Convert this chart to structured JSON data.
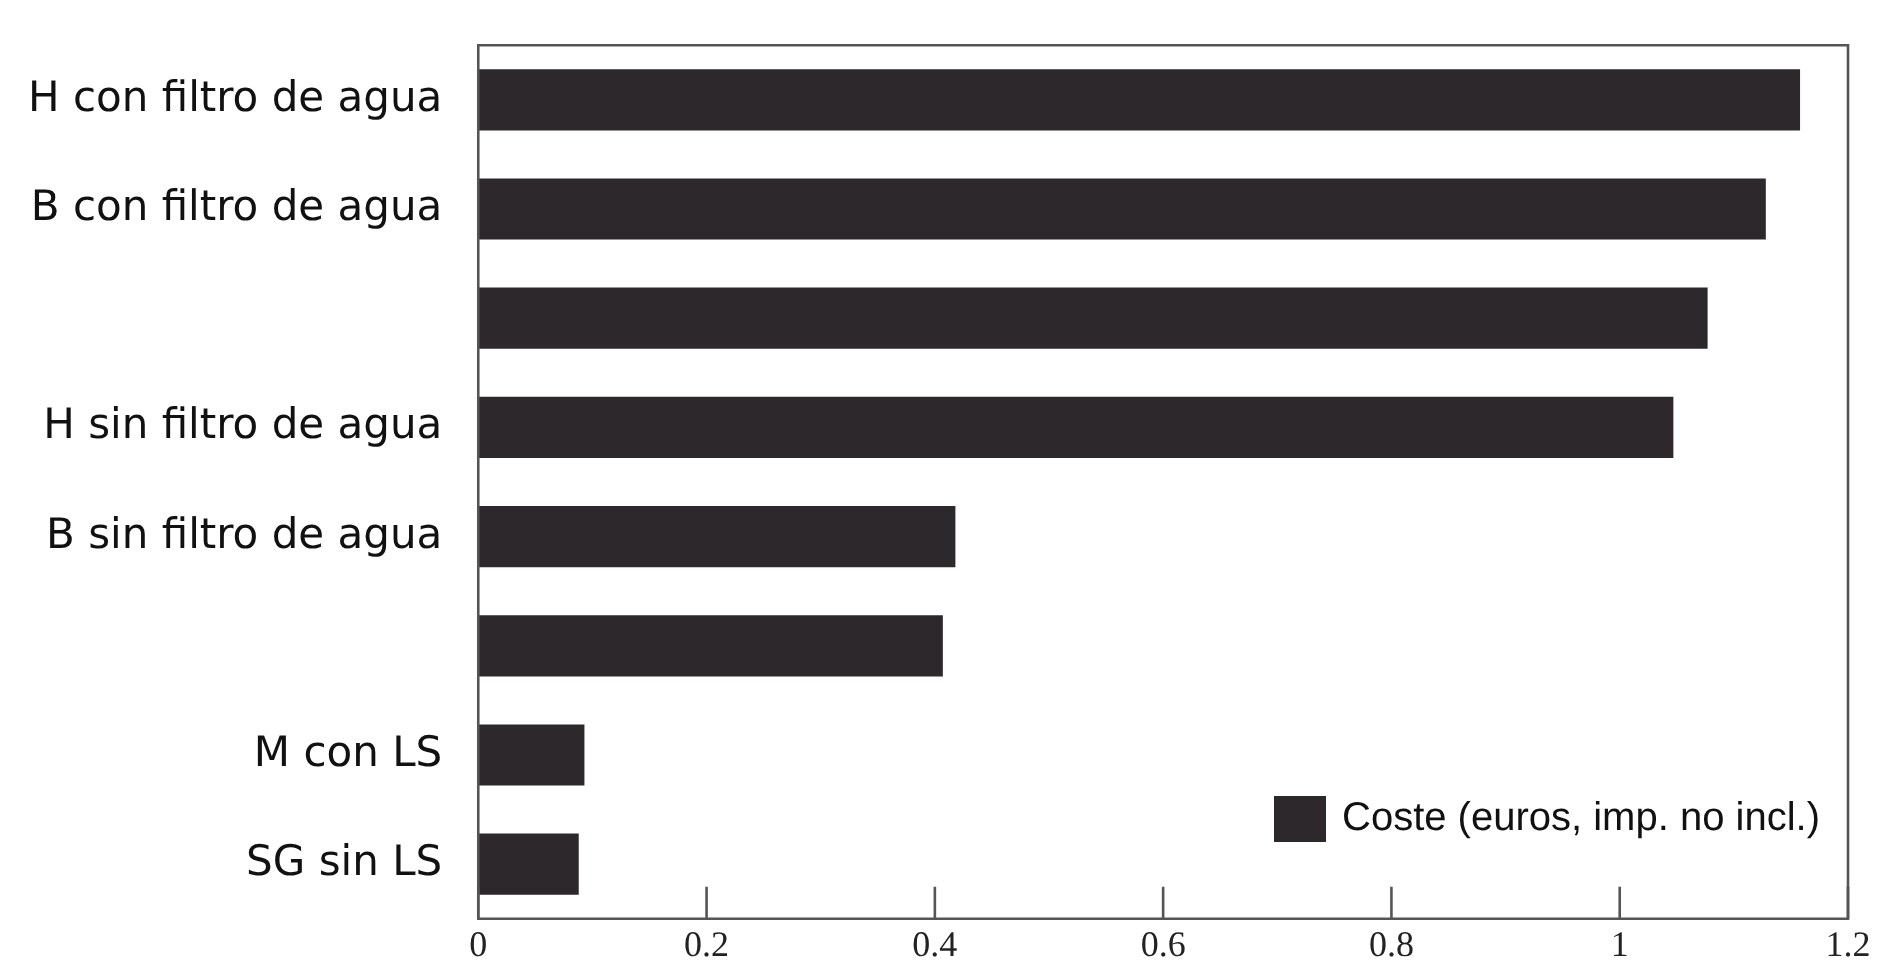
{
  "chart_data": {
    "type": "bar",
    "orientation": "horizontal",
    "categories": [
      "H con filtro de agua",
      "B con filtro de agua",
      null,
      "H sin filtro de agua",
      "B sin filtro de agua",
      null,
      "M con LS",
      "SG sin LS"
    ],
    "series": [
      {
        "name": "Coste (euros, imp. no incl.)",
        "color": "#2c282b",
        "values": [
          1.158,
          1.128,
          1.077,
          1.047,
          0.418,
          0.407,
          0.093,
          0.088
        ]
      }
    ],
    "xlim": [
      0,
      1.2
    ],
    "xticks": [
      0,
      0.2,
      0.4,
      0.6,
      0.8,
      1,
      1.2
    ],
    "grid": false,
    "legend": "bottom right"
  }
}
